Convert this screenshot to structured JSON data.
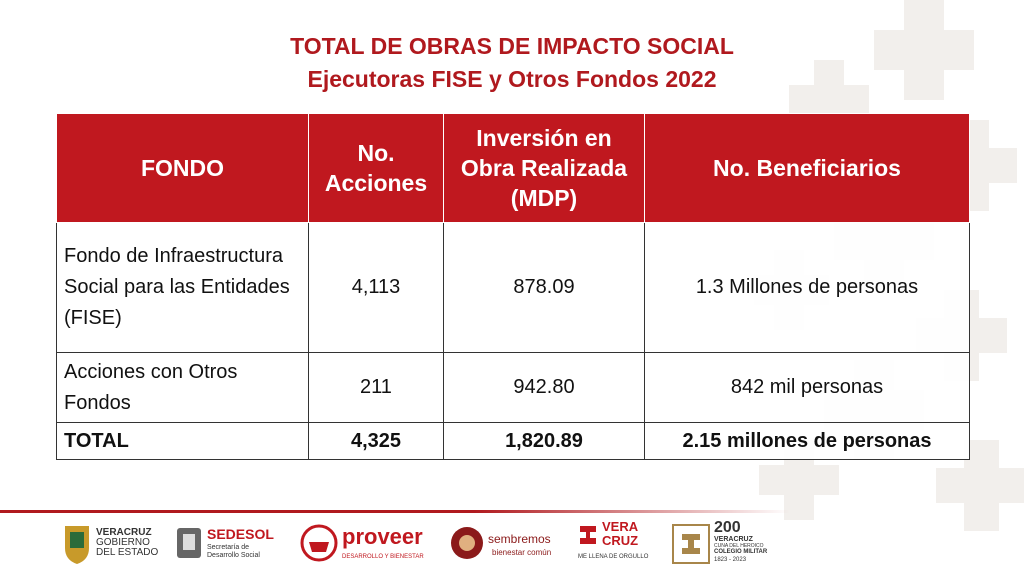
{
  "title": {
    "line1": "TOTAL DE OBRAS DE IMPACTO SOCIAL",
    "line2": "Ejecutoras FISE y Otros Fondos 2022"
  },
  "table": {
    "headers": [
      "FONDO",
      "No. Acciones",
      "Inversión en Obra Realizada (MDP)",
      "No. Beneficiarios"
    ],
    "rows": [
      {
        "fondo": "Fondo de Infraestructura Social para las Entidades (FISE)",
        "acciones": "4,113",
        "inversion": "878.09",
        "beneficiarios": "1.3 Millones de personas"
      },
      {
        "fondo": "Acciones con Otros Fondos",
        "acciones": "211",
        "inversion": "942.80",
        "beneficiarios": "842 mil personas"
      }
    ],
    "total": {
      "fondo": "TOTAL",
      "acciones": "4,325",
      "inversion": "1,820.89",
      "beneficiarios": "2.15 millones de personas"
    }
  },
  "footer": {
    "veracruz": {
      "line1": "VERACRUZ",
      "line2": "GOBIERNO",
      "line3": "DEL ESTADO"
    },
    "sedesol": {
      "name": "SEDESOL",
      "sub1": "Secretaría de",
      "sub2": "Desarrollo Social"
    },
    "proveer": {
      "name": "proveer",
      "sub": "DESARROLLO Y BIENESTAR"
    },
    "sembremos": {
      "name": "sembremos",
      "sub": "bienestar común"
    },
    "veracruz_orgullo": {
      "line1": "VERA",
      "line2": "CRUZ",
      "sub": "ME LLENA DE ORGULLO"
    },
    "colegio": {
      "num": "200",
      "line1": "VERACRUZ",
      "line2": "CUNA DEL HEROICO",
      "line3": "COLEGIO MILITAR",
      "years": "1823 - 2023"
    }
  },
  "colors": {
    "accent": "#c0181f",
    "title": "#b0191e",
    "pattern": "#e9e3dd"
  }
}
